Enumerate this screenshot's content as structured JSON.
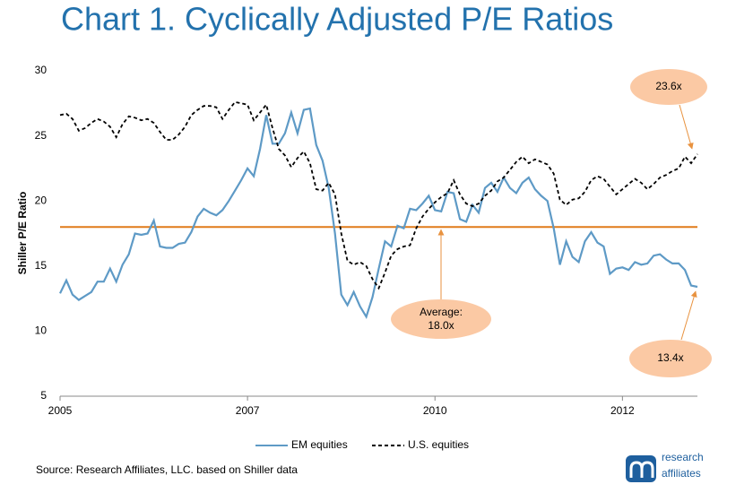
{
  "chart_data": {
    "type": "line",
    "title": "Chart 1. Cyclically Adjusted P/E Ratios",
    "y_label": "Shiller P/E Ratio",
    "source": "Source: Research Affiliates, LLC. based on Shiller data",
    "logo": [
      "research",
      "affiliates"
    ],
    "categories": [
      "2005",
      null,
      null,
      null,
      null,
      null,
      null,
      null,
      null,
      null,
      null,
      null,
      null,
      null,
      null,
      null,
      null,
      null,
      null,
      null,
      null,
      null,
      null,
      null,
      null,
      null,
      null,
      null,
      null,
      null,
      "2007",
      null,
      null,
      null,
      null,
      null,
      null,
      null,
      null,
      null,
      null,
      null,
      null,
      null,
      null,
      null,
      null,
      null,
      null,
      null,
      null,
      null,
      null,
      null,
      null,
      null,
      null,
      null,
      null,
      null,
      "2010",
      null,
      null,
      null,
      null,
      null,
      null,
      null,
      null,
      null,
      null,
      null,
      null,
      null,
      null,
      null,
      null,
      null,
      null,
      null,
      null,
      null,
      null,
      null,
      null,
      null,
      null,
      null,
      null,
      null,
      "2012",
      null,
      null,
      null,
      null,
      null,
      null,
      null,
      null,
      null,
      null,
      null,
      null
    ],
    "series": [
      {
        "name": "EM equities",
        "color": "#5e9ac6",
        "dash": false,
        "values": [
          12.9,
          13.9,
          12.8,
          12.4,
          12.7,
          13.0,
          13.8,
          13.8,
          14.8,
          13.8,
          15.1,
          15.9,
          17.5,
          17.4,
          17.5,
          18.5,
          16.5,
          16.4,
          16.4,
          16.7,
          16.8,
          17.6,
          18.8,
          19.4,
          19.1,
          18.9,
          19.3,
          20.0,
          20.8,
          21.6,
          22.5,
          21.9,
          24.0,
          26.6,
          24.4,
          24.4,
          25.2,
          26.8,
          25.2,
          27.0,
          27.1,
          24.3,
          23.1,
          21.0,
          17.5,
          12.8,
          12.0,
          13.0,
          11.9,
          11.1,
          12.6,
          14.8,
          16.9,
          16.5,
          18.1,
          17.9,
          19.4,
          19.3,
          19.8,
          20.4,
          19.3,
          19.2,
          20.7,
          20.6,
          18.6,
          18.4,
          19.7,
          19.1,
          21.0,
          21.4,
          20.7,
          21.8,
          21.0,
          20.6,
          21.4,
          21.8,
          20.9,
          20.4,
          20.0,
          17.9,
          15.1,
          16.9,
          15.7,
          15.3,
          16.9,
          17.6,
          16.8,
          16.5,
          14.4,
          14.8,
          14.9,
          14.7,
          15.3,
          15.1,
          15.2,
          15.8,
          15.9,
          15.5,
          15.2,
          15.2,
          14.7,
          13.5,
          13.4
        ]
      },
      {
        "name": "U.S. equities",
        "color": "#000000",
        "dash": true,
        "values": [
          26.6,
          26.7,
          26.3,
          25.4,
          25.6,
          26.0,
          26.3,
          26.1,
          25.7,
          24.9,
          25.9,
          26.5,
          26.4,
          26.2,
          26.3,
          26.0,
          25.3,
          24.7,
          24.7,
          25.1,
          25.7,
          26.6,
          27.0,
          27.3,
          27.3,
          27.2,
          26.3,
          27.0,
          27.6,
          27.5,
          27.4,
          26.2,
          26.8,
          27.4,
          25.6,
          24.0,
          23.5,
          22.6,
          23.3,
          23.8,
          22.9,
          20.9,
          20.8,
          21.4,
          20.5,
          17.5,
          15.4,
          15.1,
          15.3,
          15.0,
          14.0,
          13.3,
          14.5,
          15.8,
          16.3,
          16.5,
          16.6,
          17.9,
          18.8,
          19.4,
          19.9,
          20.3,
          20.6,
          21.6,
          20.5,
          19.8,
          19.6,
          19.8,
          20.4,
          20.8,
          21.5,
          21.8,
          22.4,
          23.0,
          23.4,
          22.9,
          23.2,
          23.0,
          22.8,
          22.1,
          20.1,
          19.7,
          20.1,
          20.2,
          20.7,
          21.6,
          21.9,
          21.7,
          21.1,
          20.5,
          20.9,
          21.3,
          21.7,
          21.4,
          20.9,
          21.3,
          21.8,
          22.0,
          22.3,
          22.5,
          23.4,
          22.9,
          23.6
        ]
      }
    ],
    "reference_line": {
      "value": 18.0,
      "color": "#e07b1a"
    },
    "annotations": [
      "23.6x",
      "Average:",
      "18.0x",
      "13.4x"
    ],
    "annotation_color": "#fbc9a4",
    "ylim": [
      5,
      30
    ],
    "yticks": [
      5,
      10,
      15,
      20,
      25,
      30
    ],
    "grid": false,
    "legend": "bottom"
  }
}
